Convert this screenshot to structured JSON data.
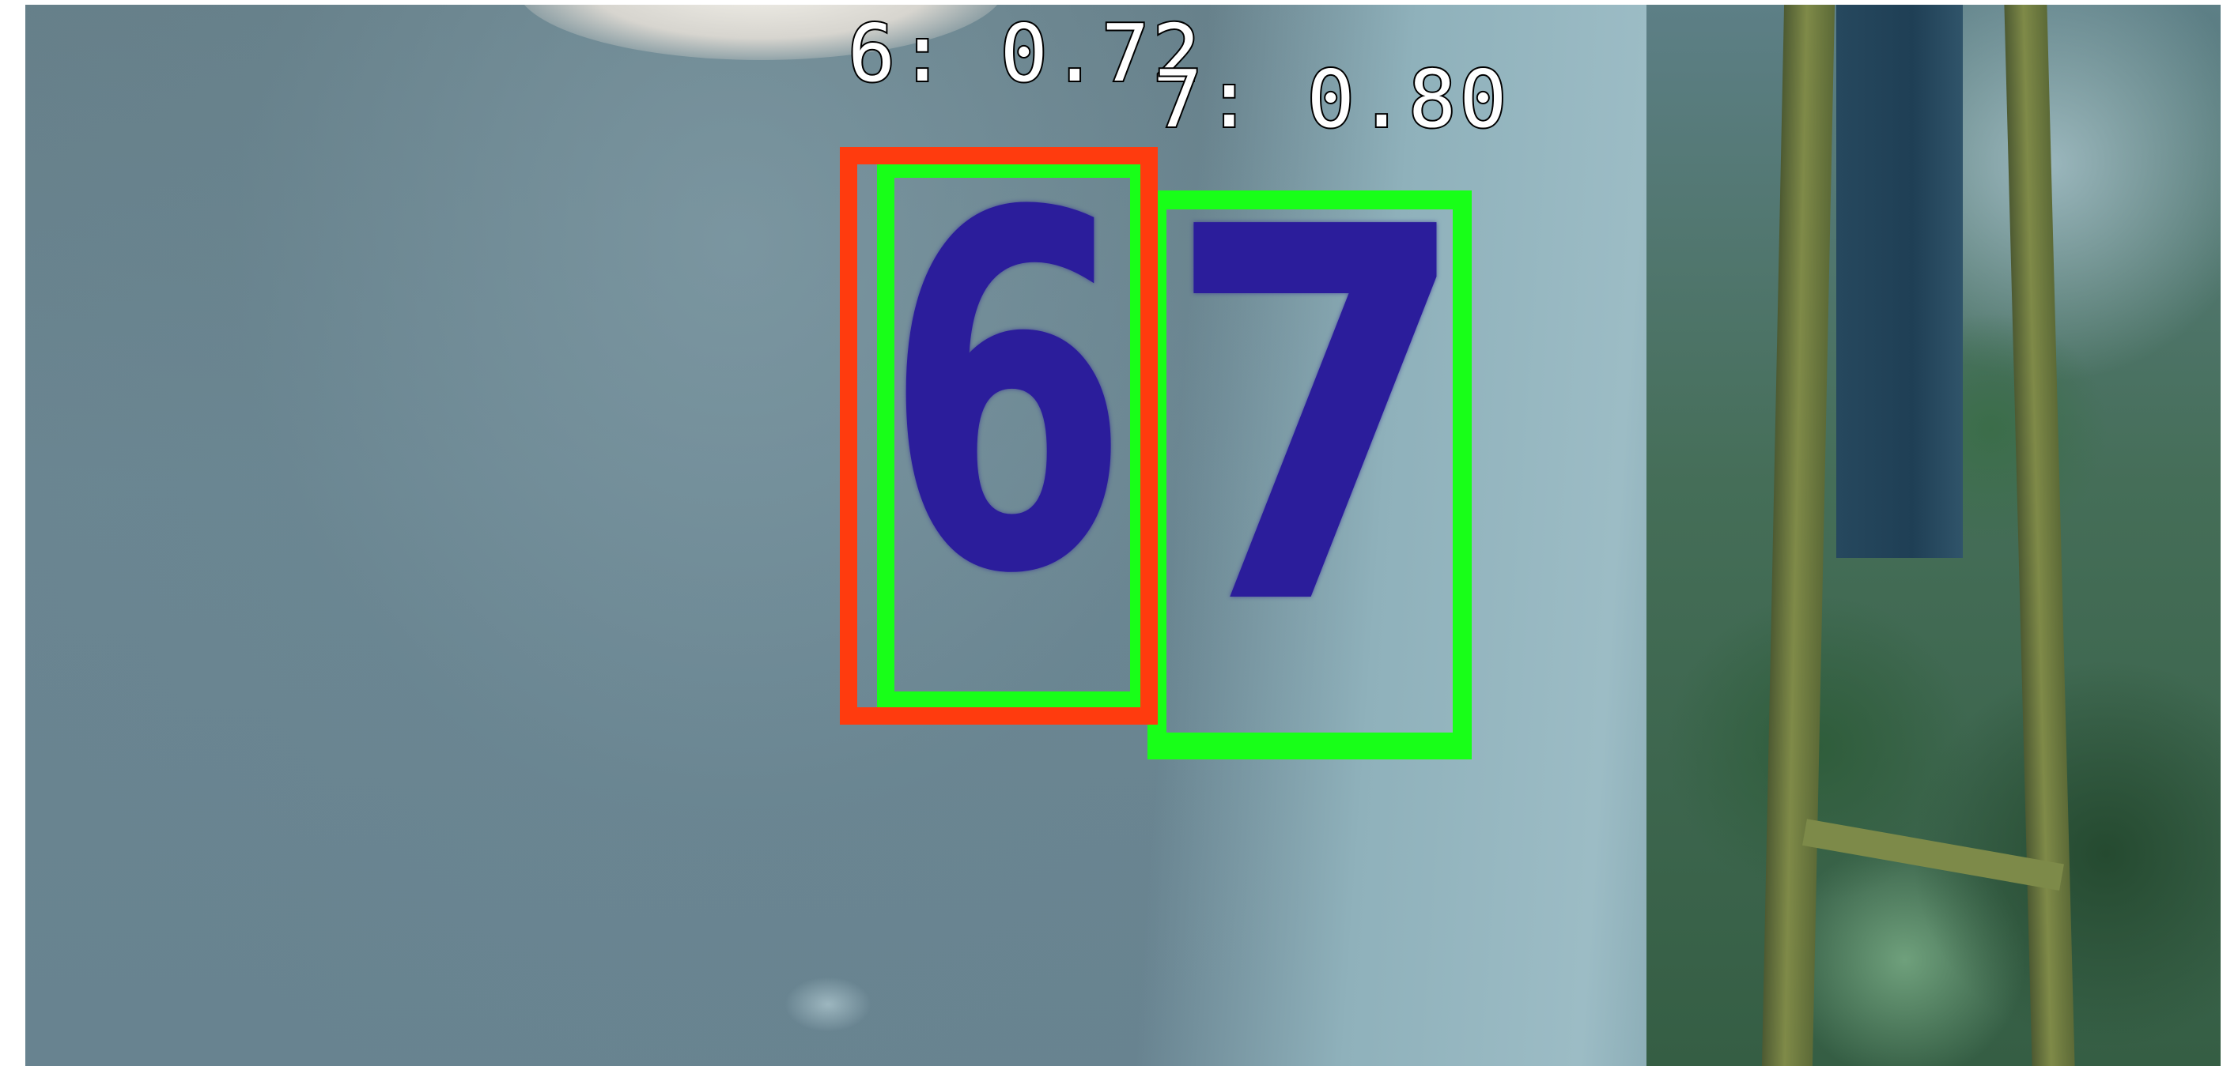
{
  "image": {
    "description_free": true
  },
  "detections": [
    {
      "class": "6",
      "score": "0.72",
      "label_text": "6: 0.72",
      "box_color": "#ff3b0e"
    },
    {
      "class": "7",
      "score": "0.80",
      "label_text": "7: 0.80",
      "box_color": "#18ff18"
    }
  ],
  "digits": {
    "first": "6",
    "second": "7"
  },
  "colors": {
    "prediction_box": "#ff3b0e",
    "ground_truth_box": "#18ff18",
    "digit_ink": "#2b1d9b"
  }
}
